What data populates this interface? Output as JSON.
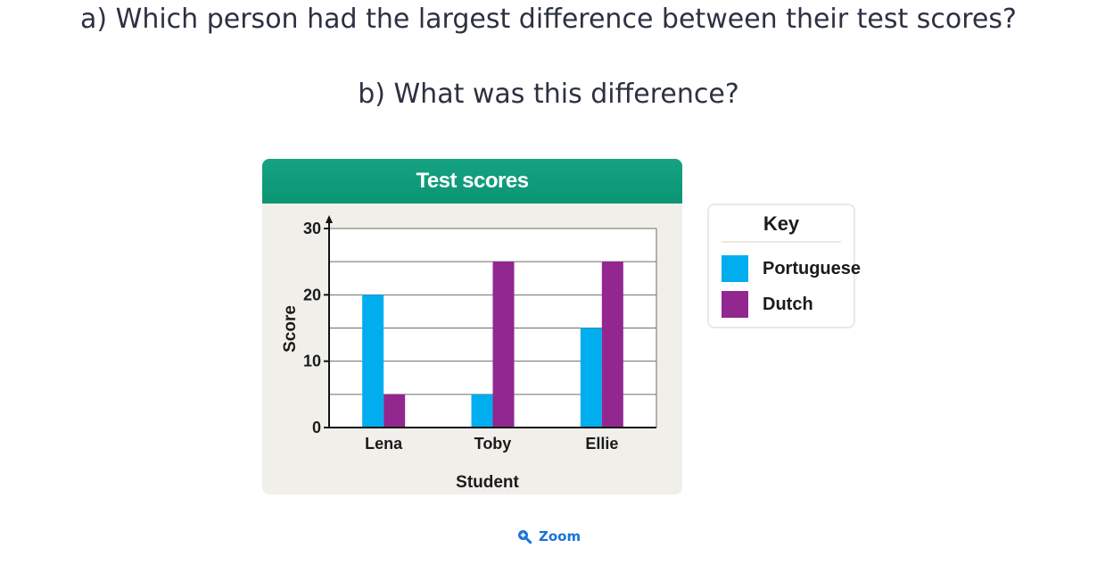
{
  "question": {
    "a": "a) Which person had the largest difference between their test scores?",
    "b": "b) What was this difference?"
  },
  "chart_data": {
    "type": "bar",
    "title": "Test scores",
    "xlabel": "Student",
    "ylabel": "Score",
    "categories": [
      "Lena",
      "Toby",
      "Ellie"
    ],
    "series": [
      {
        "name": "Portuguese",
        "values": [
          20,
          5,
          15
        ],
        "color": "#00aeef"
      },
      {
        "name": "Dutch",
        "values": [
          5,
          25,
          25
        ],
        "color": "#92278f"
      }
    ],
    "ylim": [
      0,
      30
    ],
    "yticks": [
      0,
      10,
      20,
      30
    ],
    "grid": true,
    "legend_position": "right"
  },
  "key": {
    "title": "Key",
    "items": [
      "Portuguese",
      "Dutch"
    ]
  },
  "zoom": {
    "label": "Zoom",
    "icon": "zoom-in-icon"
  }
}
